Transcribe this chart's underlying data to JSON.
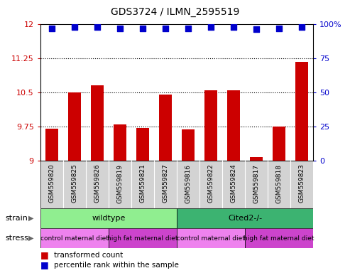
{
  "title": "GDS3724 / ILMN_2595519",
  "samples": [
    "GSM559820",
    "GSM559825",
    "GSM559826",
    "GSM559819",
    "GSM559821",
    "GSM559827",
    "GSM559816",
    "GSM559822",
    "GSM559824",
    "GSM559817",
    "GSM559818",
    "GSM559823"
  ],
  "bar_values": [
    9.7,
    10.5,
    10.65,
    9.8,
    9.72,
    10.45,
    9.68,
    10.55,
    10.55,
    9.07,
    9.75,
    11.17
  ],
  "percentile_values": [
    97,
    98,
    98,
    97,
    97,
    97,
    97,
    98,
    98,
    96,
    97,
    98
  ],
  "bar_color": "#cc0000",
  "percentile_color": "#0000cc",
  "ylim_left": [
    9.0,
    12.0
  ],
  "ylim_right": [
    0,
    100
  ],
  "yticks_left": [
    9.0,
    9.75,
    10.5,
    11.25,
    12.0
  ],
  "yticks_right": [
    0,
    25,
    50,
    75,
    100
  ],
  "ytick_labels_left": [
    "9",
    "9.75",
    "10.5",
    "11.25",
    "12"
  ],
  "ytick_labels_right": [
    "0",
    "25",
    "50",
    "75",
    "100%"
  ],
  "hlines": [
    9.75,
    10.5,
    11.25
  ],
  "strain_wt_color": "#90EE90",
  "strain_cited_color": "#3CB371",
  "stress_control_color": "#EE82EE",
  "stress_highfat_color": "#CC44CC",
  "background_color": "#ffffff",
  "sample_bg_color": "#d3d3d3",
  "bar_width": 0.55,
  "percentile_marker_size": 28
}
